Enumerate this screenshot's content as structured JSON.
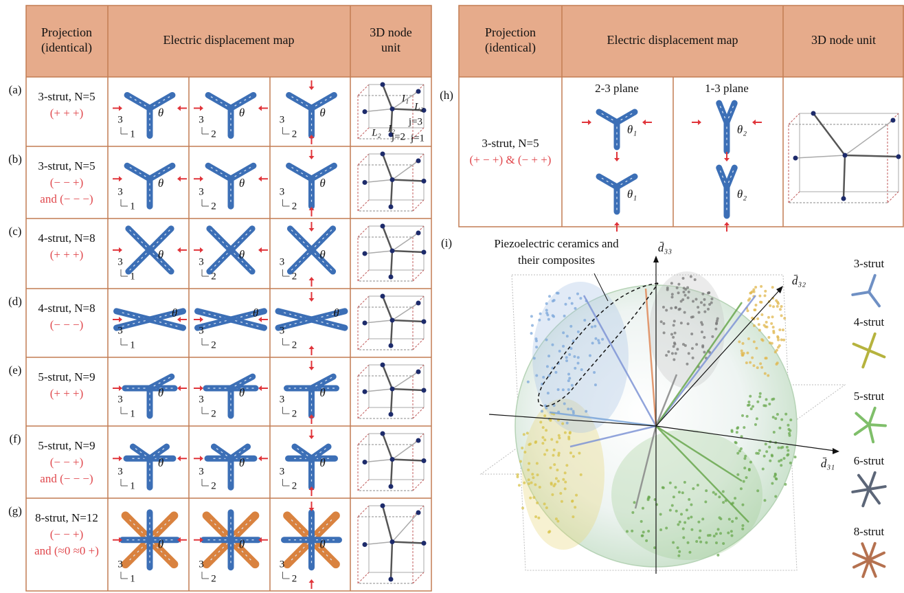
{
  "left_table": {
    "headers": [
      [
        "Projection",
        "(identical)"
      ],
      [
        "Electric displacement map"
      ],
      [
        "3D node",
        "unit"
      ]
    ],
    "rows": [
      {
        "id": "(a)",
        "label": "3-strut, N=5",
        "sign": [
          "(+ + +)"
        ],
        "maps": [
          {
            "angle": "θ",
            "axes": [
              "3",
              "1"
            ]
          },
          {
            "angle": "θ",
            "axes": [
              "3",
              "2"
            ]
          },
          {
            "angle": "θ",
            "axes": [
              "3",
              "2"
            ]
          }
        ],
        "node_labels": [
          "L₂",
          "L₂",
          "I₁",
          "I₂",
          "j=3",
          "j=2",
          "j=1"
        ]
      },
      {
        "id": "(b)",
        "label": "3-strut, N=5",
        "sign": [
          "(− − +)",
          "and (− − −)"
        ],
        "maps": [
          {
            "angle": "θ",
            "axes": [
              "3",
              "1"
            ]
          },
          {
            "angle": "θ",
            "axes": [
              "3",
              "2"
            ]
          },
          {
            "angle": "θ",
            "axes": [
              "3",
              "2"
            ]
          }
        ]
      },
      {
        "id": "(c)",
        "label": "4-strut, N=8",
        "sign": [
          "(+ + +)"
        ],
        "maps": [
          {
            "angle": "θ",
            "axes": [
              "3",
              "1"
            ]
          },
          {
            "angle": "θ",
            "axes": [
              "3",
              "2"
            ]
          },
          {
            "angle": "θ",
            "axes": [
              "3",
              "2"
            ]
          }
        ]
      },
      {
        "id": "(d)",
        "label": "4-strut, N=8",
        "sign": [
          "(− − −)"
        ],
        "maps": [
          {
            "angle": "θ",
            "axes": [
              "3",
              "1"
            ]
          },
          {
            "angle": "θ",
            "axes": [
              "3",
              "2"
            ]
          },
          {
            "angle": "θ",
            "axes": [
              "3",
              "2"
            ]
          }
        ]
      },
      {
        "id": "(e)",
        "label": "5-strut, N=9",
        "sign": [
          "(+ + +)"
        ],
        "maps": [
          {
            "angle": "θ",
            "axes": [
              "3",
              "1"
            ]
          },
          {
            "angle": "θ",
            "axes": [
              "3",
              "2"
            ]
          },
          {
            "angle": "θ",
            "axes": [
              "3",
              "2"
            ]
          }
        ]
      },
      {
        "id": "(f)",
        "label": "5-strut, N=9",
        "sign": [
          "(− − +)",
          "and (− − −)"
        ],
        "maps": [
          {
            "angle": "θ",
            "axes": [
              "3",
              "1"
            ]
          },
          {
            "angle": "θ",
            "axes": [
              "3",
              "2"
            ]
          },
          {
            "angle": "θ",
            "axes": [
              "3",
              "2"
            ]
          }
        ]
      },
      {
        "id": "(g)",
        "label": "8-strut, N=12",
        "sign": [
          "(− − +)",
          "and (≈0 ≈0 +)"
        ],
        "maps": [
          {
            "angle": "θ",
            "axes": [
              "3",
              "1"
            ]
          },
          {
            "angle": "θ",
            "axes": [
              "3",
              "2"
            ]
          },
          {
            "angle": "θ",
            "axes": [
              "3",
              "2"
            ]
          }
        ]
      }
    ]
  },
  "right_table": {
    "headers": [
      [
        "Projection",
        "(identical)"
      ],
      [
        "Electric displacement map"
      ],
      [
        "3D node unit"
      ]
    ],
    "row": {
      "id": "(h)",
      "label": "3-strut, N=5",
      "sign": [
        "(+ − +) & (− + +)"
      ],
      "planes": [
        {
          "title": "2-3 plane",
          "angles": [
            "θ₁",
            "θ₁"
          ]
        },
        {
          "title": "1-3 plane",
          "angles": [
            "θ₂",
            "θ₂"
          ]
        }
      ]
    }
  },
  "panel_i": {
    "id": "(i)",
    "annotation": [
      "Piezoelectric ceramics and",
      "their composites"
    ],
    "axes": [
      "d̄₃₃",
      "d̄₃₂",
      "d̄₃₁"
    ],
    "legend": [
      "3-strut",
      "4-strut",
      "5-strut",
      "6-strut",
      "8-strut"
    ]
  }
}
